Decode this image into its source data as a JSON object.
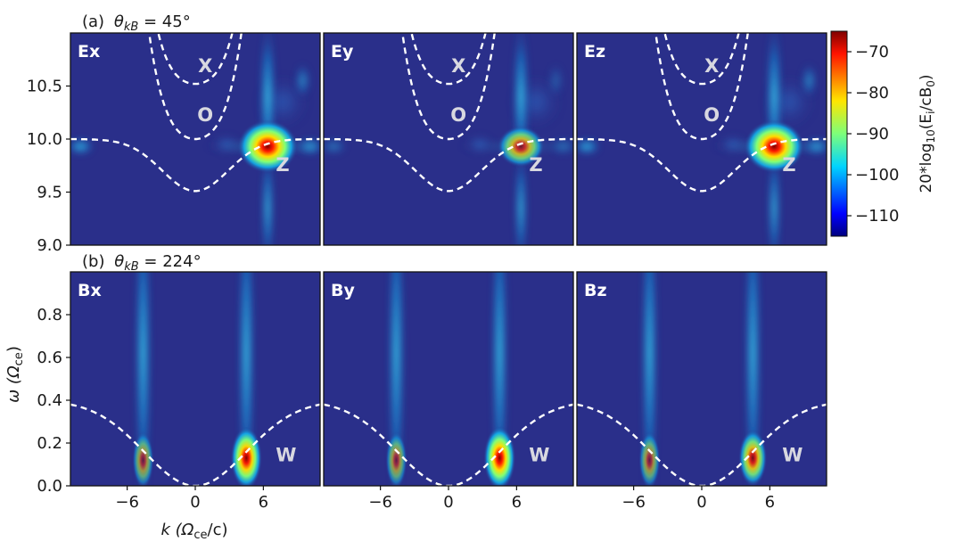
{
  "chart_data": [
    {
      "type": "heatmap",
      "row_title": {
        "prefix": "(a)",
        "theta_symbol": "θ",
        "theta_subscript": "kB",
        "rest": " = 45°"
      },
      "x_range": [
        -10,
        10
      ],
      "y_range": [
        9.0,
        11.0
      ],
      "y_ticks": [
        "9.0",
        "9.5",
        "10.0",
        "10.5"
      ],
      "y_tick_values": [
        9.0,
        9.5,
        10.0,
        10.5
      ],
      "panels": [
        {
          "label": "Ex",
          "peak_intensity": 1.0,
          "mode_labels": [
            {
              "text": "X",
              "k": 0.8,
              "w": 10.68
            },
            {
              "text": "O",
              "k": 0.8,
              "w": 10.22
            },
            {
              "text": "Z",
              "k": 7.0,
              "w": 9.75
            }
          ]
        },
        {
          "label": "Ey",
          "peak_intensity": 0.55,
          "mode_labels": [
            {
              "text": "X",
              "k": 0.8,
              "w": 10.68
            },
            {
              "text": "O",
              "k": 0.8,
              "w": 10.22
            },
            {
              "text": "Z",
              "k": 7.0,
              "w": 9.75
            }
          ]
        },
        {
          "label": "Ez",
          "peak_intensity": 1.0,
          "mode_labels": [
            {
              "text": "X",
              "k": 0.8,
              "w": 10.68
            },
            {
              "text": "O",
              "k": 0.8,
              "w": 10.22
            },
            {
              "text": "Z",
              "k": 7.0,
              "w": 9.75
            }
          ]
        }
      ],
      "dispersion_curves": [
        "X-mode",
        "O-mode",
        "Z-mode"
      ],
      "intensity_peak": {
        "k": 5.8,
        "w": 9.93
      }
    },
    {
      "type": "heatmap",
      "row_title": {
        "prefix": "(b)",
        "theta_symbol": "θ",
        "theta_subscript": "kB",
        "rest": " = 224°"
      },
      "x_range": [
        -11,
        11
      ],
      "y_range": [
        0.0,
        1.0
      ],
      "x_ticks": [
        "−6",
        "0",
        "6"
      ],
      "x_tick_values": [
        -6,
        0,
        6
      ],
      "y_ticks": [
        "0.0",
        "0.2",
        "0.4",
        "0.6",
        "0.8"
      ],
      "y_tick_values": [
        0.0,
        0.2,
        0.4,
        0.6,
        0.8
      ],
      "x_label": {
        "prefix": "k (Ω",
        "subscript": "ce",
        "suffix": "/c)"
      },
      "y_label": {
        "prefix": "ω (Ω",
        "subscript": "ce",
        "suffix": ")"
      },
      "panels": [
        {
          "label": "Bx",
          "peak_intensity": 0.95,
          "mode_labels": [
            {
              "text": "W",
              "k": 8.0,
              "w": 0.14
            }
          ]
        },
        {
          "label": "By",
          "peak_intensity": 1.0,
          "mode_labels": [
            {
              "text": "W",
              "k": 8.0,
              "w": 0.14
            }
          ]
        },
        {
          "label": "Bz",
          "peak_intensity": 0.72,
          "mode_labels": [
            {
              "text": "W",
              "k": 8.0,
              "w": 0.14
            }
          ]
        }
      ],
      "dispersion_curves": [
        "Whistler"
      ],
      "intensity_peak": {
        "k": 4.5,
        "w": 0.13
      }
    }
  ],
  "colorbar": {
    "label_prefix": "20*log",
    "label_log_subscript": "10",
    "label_arg_open": "(E",
    "label_i_subscript": "i",
    "label_mid": "/cB",
    "label_zero_subscript": "0",
    "label_close": ")",
    "ticks": [
      "−70",
      "−80",
      "−90",
      "−100",
      "−110"
    ],
    "tick_values": [
      -70,
      -80,
      -90,
      -100,
      -110
    ],
    "range": [
      -115,
      -65
    ],
    "colormap": "jet"
  },
  "colors": {
    "background": "#2a2f8a",
    "dispersion_curve": "#ffffff"
  }
}
